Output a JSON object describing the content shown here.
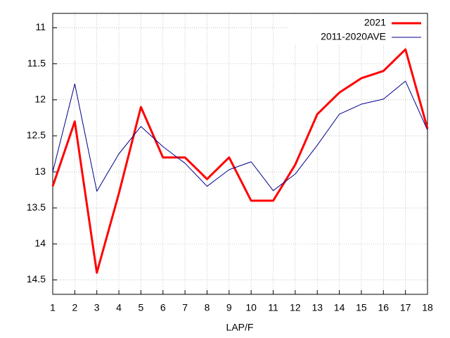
{
  "chart_data": {
    "type": "line",
    "x_label": "LAP/F",
    "x": [
      1,
      2,
      3,
      4,
      5,
      6,
      7,
      8,
      9,
      10,
      11,
      12,
      13,
      14,
      15,
      16,
      17,
      18
    ],
    "xlim": [
      1,
      18
    ],
    "xticks": [
      1,
      2,
      3,
      4,
      5,
      6,
      7,
      8,
      9,
      10,
      11,
      12,
      13,
      14,
      15,
      16,
      17,
      18
    ],
    "ylim": [
      10.8,
      14.7
    ],
    "yticks": [
      11,
      11.5,
      12,
      12.5,
      13,
      13.5,
      14,
      14.5
    ],
    "y_inverted": true,
    "grid": true,
    "legend": "top-right",
    "series": [
      {
        "name": "2021",
        "color": "#ff0000",
        "width": 3,
        "values": [
          13.2,
          12.3,
          14.4,
          13.3,
          12.1,
          12.8,
          12.8,
          13.1,
          12.8,
          13.4,
          13.4,
          12.9,
          12.2,
          11.9,
          11.7,
          11.6,
          11.3,
          12.4
        ]
      },
      {
        "name": "2011-2020AVE",
        "color": "#00008b",
        "width": 1,
        "values": [
          13.0,
          11.78,
          13.27,
          12.75,
          12.37,
          12.65,
          12.88,
          13.2,
          12.97,
          12.86,
          13.26,
          13.03,
          12.63,
          12.2,
          12.06,
          11.99,
          11.74,
          12.42
        ]
      }
    ]
  }
}
